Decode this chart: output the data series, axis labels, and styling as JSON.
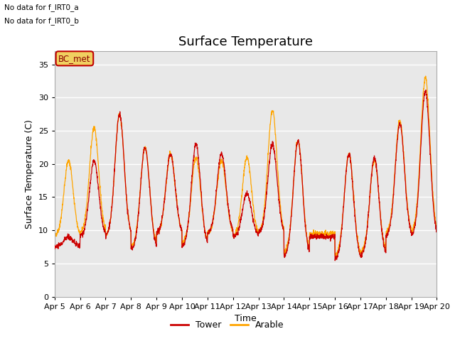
{
  "title": "Surface Temperature",
  "xlabel": "Time",
  "ylabel": "Surface Temperature (C)",
  "ylim": [
    0,
    37
  ],
  "yticks": [
    0,
    5,
    10,
    15,
    20,
    25,
    30,
    35
  ],
  "x_tick_labels": [
    "Apr 5",
    "Apr 6",
    "Apr 7",
    "Apr 8",
    "Apr 9",
    "Apr 10",
    "Apr 11",
    "Apr 12",
    "Apr 13",
    "Apr 14",
    "Apr 15",
    "Apr 16",
    "Apr 17",
    "Apr 18",
    "Apr 19",
    "Apr 20"
  ],
  "annotation_lines": [
    "No data for f_IRT0_a",
    "No data for f_IRT0_b"
  ],
  "legend_box_text": "BC_met",
  "legend_box_color": "#f0d060",
  "legend_box_border": "#c00000",
  "tower_color": "#cc0000",
  "arable_color": "#ffa500",
  "background_color": "#e8e8e8",
  "grid_color": "white",
  "title_fontsize": 13,
  "axis_label_fontsize": 9,
  "tick_fontsize": 8,
  "day_peaks_tower": [
    9.0,
    20.5,
    27.5,
    22.5,
    21.5,
    23.0,
    21.5,
    15.5,
    23.0,
    23.5,
    9.0,
    21.5,
    21.0,
    26.0,
    31.0
  ],
  "day_mins_tower": [
    7.5,
    9.0,
    9.0,
    7.0,
    9.5,
    7.5,
    9.5,
    9.0,
    9.5,
    6.0,
    9.0,
    5.5,
    6.0,
    9.0,
    9.0
  ],
  "day_peaks_arable": [
    20.5,
    25.5,
    27.5,
    22.5,
    21.5,
    21.0,
    20.5,
    21.0,
    28.0,
    23.5,
    9.5,
    21.5,
    20.5,
    26.5,
    33.0
  ],
  "day_mins_arable": [
    9.0,
    9.5,
    9.0,
    7.5,
    9.5,
    8.0,
    9.5,
    9.0,
    9.5,
    6.5,
    9.5,
    6.0,
    6.5,
    9.5,
    9.5
  ]
}
